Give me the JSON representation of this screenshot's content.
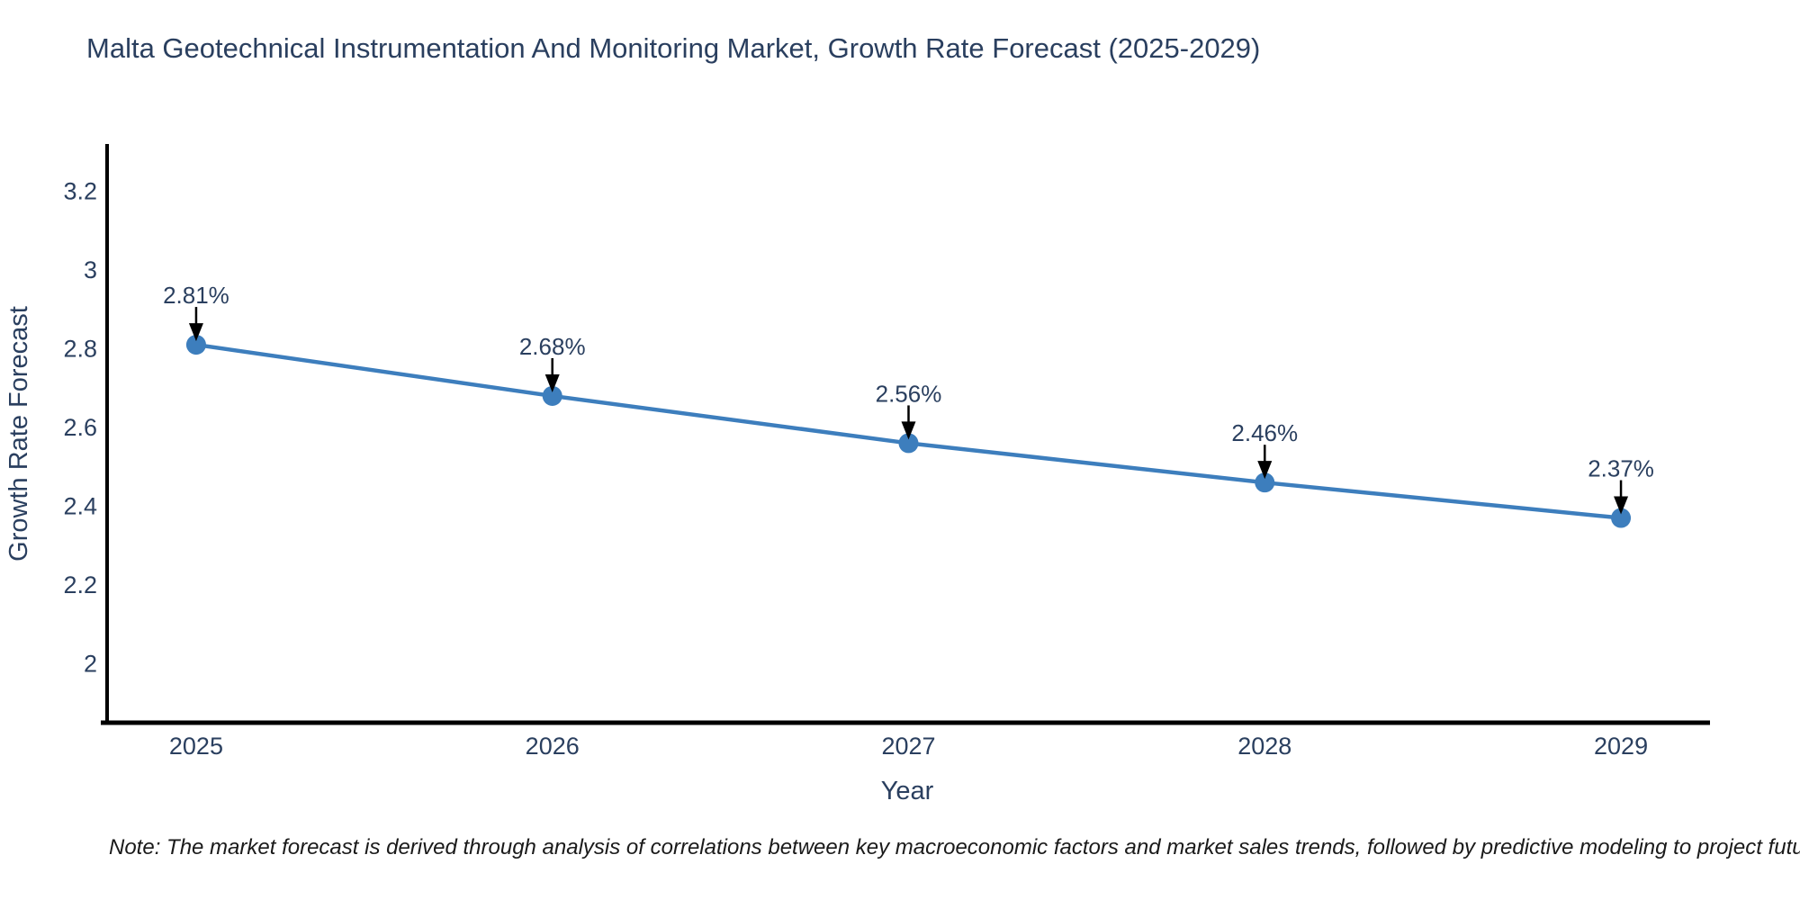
{
  "title": "Malta Geotechnical Instrumentation And Monitoring Market, Growth Rate Forecast (2025-2029)",
  "note": "Note: The market forecast is derived through analysis of correlations between key macroeconomic factors and market sales trends, followed by predictive modeling to project future sales",
  "chart_data": {
    "type": "line",
    "title": "Malta Geotechnical Instrumentation And Monitoring Market, Growth Rate Forecast (2025-2029)",
    "x": [
      2025,
      2026,
      2027,
      2028,
      2029
    ],
    "values": [
      2.81,
      2.68,
      2.56,
      2.46,
      2.37
    ],
    "point_labels": [
      "2.81%",
      "2.68%",
      "2.56%",
      "2.46%",
      "2.37%"
    ],
    "xlabel": "Year",
    "ylabel": "Growth Rate Forecast",
    "yticks": [
      3.2,
      3,
      2.8,
      2.6,
      2.4,
      2.2,
      2
    ],
    "ylim": [
      1.85,
      3.32
    ],
    "xlim": [
      2024.75,
      2029.25
    ],
    "grid": false,
    "legend": "none",
    "colors": {
      "line": "#3d7ebd",
      "marker": "#3d7ebd",
      "text": "#2a3f5f",
      "axis": "#000000",
      "arrow": "#000000"
    }
  }
}
